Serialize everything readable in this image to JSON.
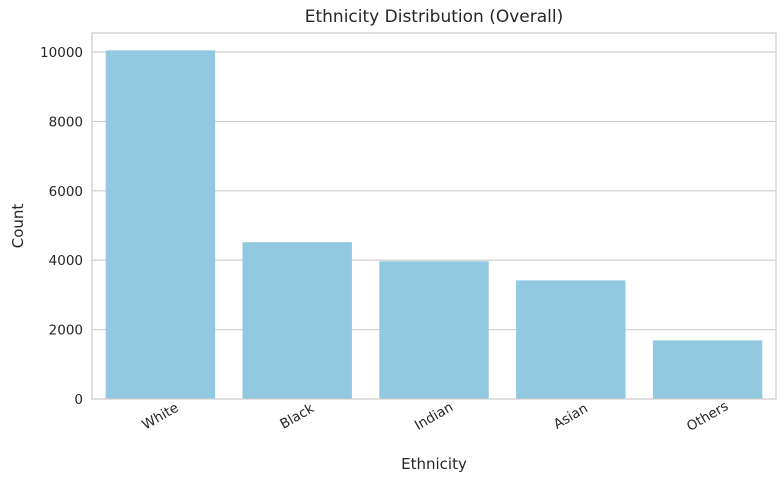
{
  "chart_data": {
    "type": "bar",
    "title": "Ethnicity Distribution (Overall)",
    "xlabel": "Ethnicity",
    "ylabel": "Count",
    "categories": [
      "White",
      "Black",
      "Indian",
      "Asian",
      "Others"
    ],
    "values": [
      10050,
      4520,
      3970,
      3420,
      1690
    ],
    "ylim": [
      0,
      10550
    ],
    "yticks": [
      0,
      2000,
      4000,
      6000,
      8000,
      10000
    ],
    "grid": true,
    "bar_color": "#92C9E0",
    "grid_color": "#CCCCCC",
    "text_color": "#262626"
  }
}
